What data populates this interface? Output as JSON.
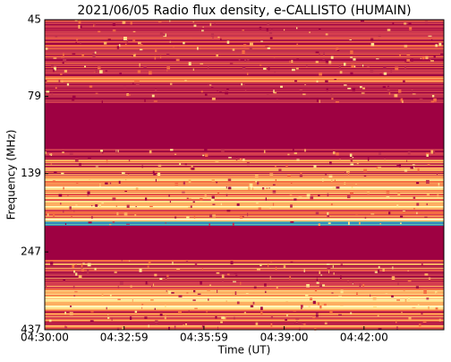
{
  "chart_data": {
    "type": "spectrogram",
    "title": "2021/06/05  Radio flux density, e-CALLISTO (HUMAIN)",
    "x_label": "Time (UT)",
    "y_label": "Frequency (MHz)",
    "xlim": [
      16200,
      17100
    ],
    "xticks": [
      {
        "value": 16200,
        "label": "04:30:00"
      },
      {
        "value": 16379,
        "label": "04:32:59"
      },
      {
        "value": 16559,
        "label": "04:35:59"
      },
      {
        "value": 16740,
        "label": "04:39:00"
      },
      {
        "value": 16920,
        "label": "04:42:00"
      }
    ],
    "ylim": [
      45,
      437
    ],
    "y_log": true,
    "y_inverted": true,
    "yticks": [
      45,
      79,
      139,
      247,
      437
    ]
  }
}
